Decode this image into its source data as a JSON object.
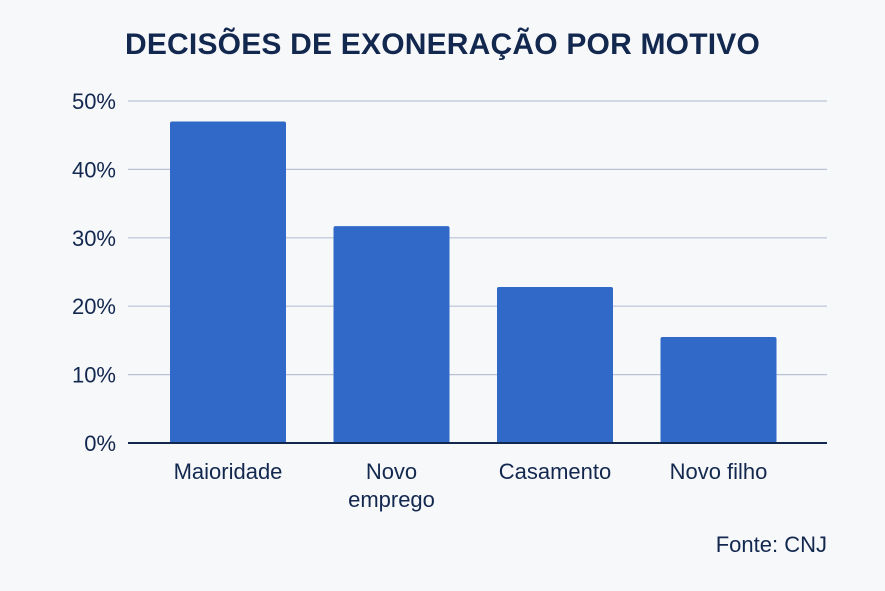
{
  "chart_data": {
    "type": "bar",
    "title": "DECISÕES DE EXONERAÇÃO POR MOTIVO",
    "categories": [
      [
        "Maioridade"
      ],
      [
        "Novo",
        "emprego"
      ],
      [
        "Casamento"
      ],
      [
        "Novo filho"
      ]
    ],
    "values": [
      47,
      31.7,
      22.8,
      15.5
    ],
    "ylim": [
      0,
      50
    ],
    "yticks": [
      0,
      10,
      20,
      30,
      40,
      50
    ],
    "ytick_suffix": "%",
    "grid": true,
    "bar_color": "#3169c9",
    "xlabel": "",
    "ylabel": ""
  },
  "source": "Fonte: CNJ"
}
